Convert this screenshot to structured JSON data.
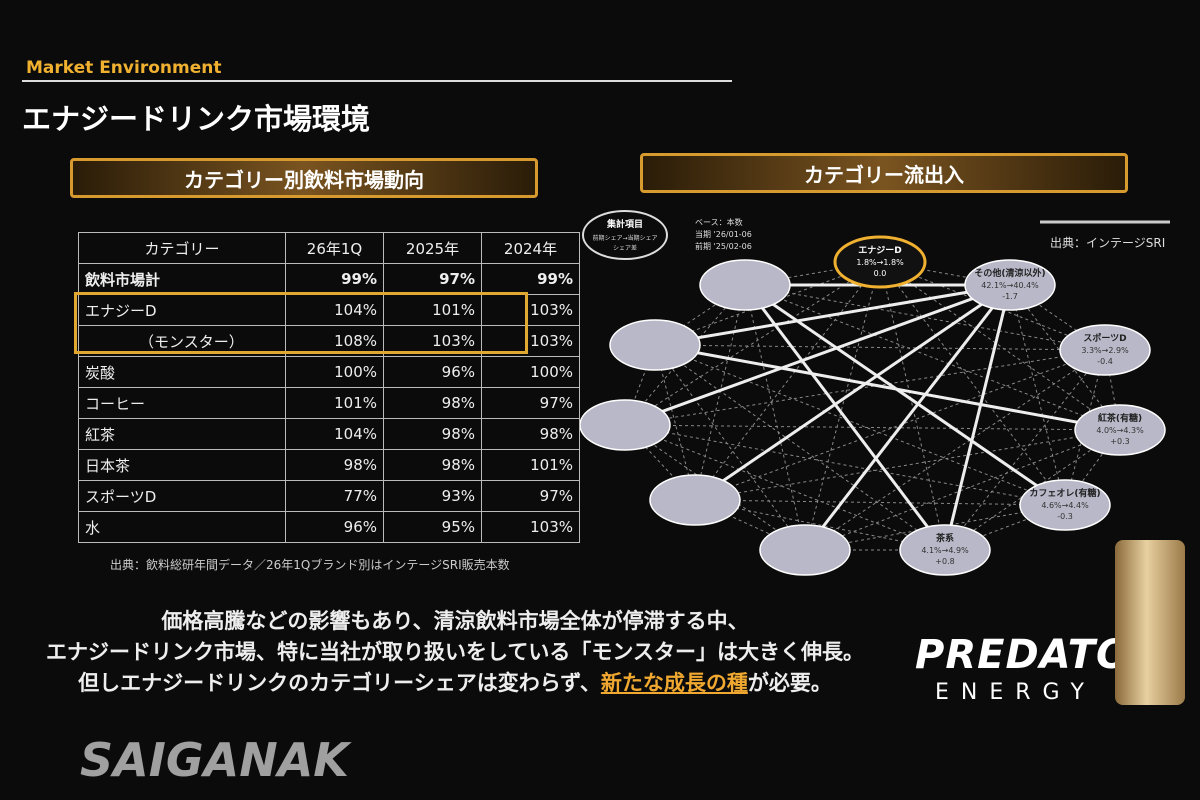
{
  "header": {
    "section": "Market Environment",
    "title": "エナジードリンク市場環境"
  },
  "table_panel": {
    "title": "カテゴリー別飲料市場動向",
    "columns": [
      "カテゴリー",
      "26年1Q",
      "2025年",
      "2024年"
    ],
    "rows": [
      [
        "飲料市場計",
        "99%",
        "97%",
        "99%"
      ],
      [
        "エナジーD",
        "104%",
        "101%",
        "103%"
      ],
      [
        "（モンスター）",
        "108%",
        "103%",
        "103%"
      ],
      [
        "炭酸",
        "100%",
        "96%",
        "100%"
      ],
      [
        "コーヒー",
        "101%",
        "98%",
        "97%"
      ],
      [
        "紅茶",
        "104%",
        "98%",
        "98%"
      ],
      [
        "日本茶",
        "98%",
        "98%",
        "101%"
      ],
      [
        "スポーツD",
        "77%",
        "93%",
        "97%"
      ],
      [
        "水",
        "96%",
        "95%",
        "103%"
      ]
    ],
    "source": "出典：飲料総研年間データ／26年1Qブランド別はインテージSRI販売本数"
  },
  "flow_panel": {
    "title": "カテゴリー流出入",
    "legend": {
      "title": "集計項目",
      "line1": "前期シェア→当期シェア",
      "line2": "シェア差"
    },
    "base": {
      "line1": "ベース：本数",
      "line2": "当期 '26/01-06",
      "line3": "前期 '25/02-06"
    },
    "source": "出典：インテージSRI",
    "nodes": [
      {
        "label": "エナジーD",
        "share": "1.8%→1.8%",
        "diff": "0.0"
      },
      {
        "label": "その他(清涼以外)",
        "share": "42.1%→40.4%",
        "diff": "-1.7"
      },
      {
        "label": "スポーツD",
        "share": "3.3%→2.9%",
        "diff": "-0.4"
      },
      {
        "label": "紅茶(有糖)",
        "share": "4.0%→4.3%",
        "diff": "+0.3"
      },
      {
        "label": "カフェオレ(有糖)",
        "share": "4.6%→4.4%",
        "diff": "-0.3"
      },
      {
        "label": "茶系",
        "share": "4.1%→4.9%",
        "diff": "+0.8"
      }
    ]
  },
  "message": {
    "line1": "価格高騰などの影響もあり、清涼飲料市場全体が停滞する中、",
    "line2": "エナジードリンク市場、特に当社が取り扱いをしている「モンスター」は大きく伸長。",
    "line3_before": "但しエナジードリンクのカテゴリーシェアは変わらず、",
    "line3_highlight": "新たな成長の種",
    "line3_after": "が必要。"
  },
  "brand": {
    "name": "PREDATOR",
    "sub": "ENERGY"
  },
  "watermark": "SAIGANAK"
}
